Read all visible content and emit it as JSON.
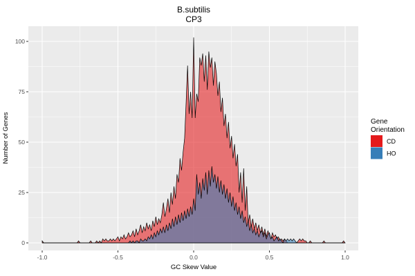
{
  "chart_data": {
    "type": "area",
    "title": "B.subtilis",
    "subtitle": "CP3",
    "xlabel": "GC Skew Value",
    "ylabel": "Number of Genes",
    "xlim": [
      -1.0,
      1.0
    ],
    "ylim": [
      0,
      100
    ],
    "x_ticks": [
      -1.0,
      -0.5,
      0.0,
      0.5,
      1.0
    ],
    "x_tick_labels": [
      "-1.0",
      "-0.5",
      "0.0",
      "0.5",
      "1.0"
    ],
    "y_ticks": [
      0,
      25,
      50,
      75,
      100
    ],
    "y_tick_labels": [
      "0",
      "25",
      "50",
      "75",
      "100"
    ],
    "grid": "major-minor-white-on-gray",
    "panel_color": "#EBEBEB",
    "grid_color": "#FFFFFF",
    "outline_color": "#000000",
    "fill_alpha": 0.58,
    "legend_position": "right",
    "legend_title": "Gene Orientation",
    "legend_title_lines": [
      "Gene",
      "Orientation"
    ],
    "x_start": -1.0,
    "x_step": 0.01,
    "series": [
      {
        "name": "CD",
        "color": "#E41A1C",
        "values": [
          1,
          0,
          0,
          0,
          0,
          0,
          0,
          0,
          0,
          0,
          0,
          0,
          0,
          0,
          0,
          0,
          0,
          0,
          0,
          0,
          0,
          0,
          0,
          0,
          1,
          0,
          0,
          0,
          0,
          0,
          0,
          0,
          1,
          0,
          0,
          0,
          1,
          0,
          1,
          0,
          2,
          1,
          2,
          1,
          1,
          2,
          1,
          2,
          1,
          2,
          3,
          1,
          3,
          2,
          4,
          2,
          3,
          5,
          3,
          4,
          6,
          3,
          7,
          4,
          6,
          9,
          5,
          8,
          6,
          10,
          7,
          9,
          6,
          11,
          8,
          13,
          9,
          12,
          10,
          14,
          20,
          13,
          17,
          22,
          15,
          25,
          19,
          28,
          22,
          34,
          30,
          42,
          36,
          45,
          52,
          70,
          88,
          64,
          75,
          62,
          102,
          62,
          74,
          70,
          92,
          88,
          94,
          80,
          93,
          76,
          95,
          87,
          92,
          78,
          90,
          84,
          73,
          80,
          65,
          72,
          58,
          64,
          52,
          60,
          47,
          53,
          42,
          49,
          38,
          44,
          25,
          35,
          20,
          37,
          16,
          28,
          10,
          14,
          8,
          12,
          7,
          10,
          6,
          9,
          5,
          8,
          4,
          7,
          3,
          6,
          4,
          2,
          5,
          3,
          4,
          2,
          3,
          1,
          2,
          1,
          2,
          1,
          0,
          0,
          0,
          0,
          0,
          0,
          0,
          1,
          2,
          1,
          2,
          1,
          1,
          0,
          0,
          1,
          0,
          0,
          0,
          0,
          0,
          0,
          0,
          0,
          1,
          0,
          0,
          0,
          0,
          0,
          0,
          0,
          0,
          0,
          0,
          0,
          0,
          1,
          0
        ]
      },
      {
        "name": "HO",
        "color": "#377EB8",
        "values": [
          0,
          0,
          0,
          0,
          0,
          0,
          0,
          0,
          0,
          0,
          0,
          0,
          0,
          0,
          0,
          0,
          0,
          0,
          0,
          0,
          0,
          0,
          0,
          0,
          0,
          0,
          0,
          0,
          0,
          0,
          0,
          0,
          0,
          0,
          0,
          0,
          0,
          0,
          0,
          0,
          0,
          0,
          0,
          0,
          0,
          0,
          0,
          0,
          0,
          0,
          0,
          0,
          0,
          0,
          0,
          0,
          0,
          0,
          1,
          0,
          1,
          0,
          1,
          1,
          0,
          2,
          1,
          1,
          2,
          1,
          3,
          2,
          4,
          2,
          5,
          3,
          6,
          4,
          7,
          5,
          8,
          5,
          9,
          6,
          10,
          7,
          12,
          8,
          13,
          9,
          14,
          10,
          15,
          11,
          16,
          12,
          17,
          13,
          18,
          14,
          22,
          16,
          34,
          24,
          30,
          22,
          32,
          26,
          35,
          24,
          36,
          28,
          38,
          30,
          34,
          27,
          33,
          25,
          31,
          24,
          29,
          22,
          27,
          20,
          25,
          18,
          23,
          16,
          20,
          14,
          18,
          12,
          16,
          10,
          13,
          8,
          11,
          6,
          9,
          5,
          7,
          4,
          6,
          3,
          5,
          6,
          3,
          5,
          2,
          4,
          5,
          2,
          3,
          1,
          2,
          3,
          1,
          2,
          1,
          0,
          2,
          1,
          2,
          1,
          2,
          1,
          2,
          1,
          0,
          0,
          0,
          0,
          0,
          0,
          0,
          0,
          0,
          0,
          0,
          0,
          0,
          0,
          0,
          0,
          0,
          0,
          0,
          0,
          0,
          0,
          0,
          0,
          0,
          0,
          0,
          0,
          0,
          0,
          0,
          0,
          0
        ]
      }
    ]
  }
}
